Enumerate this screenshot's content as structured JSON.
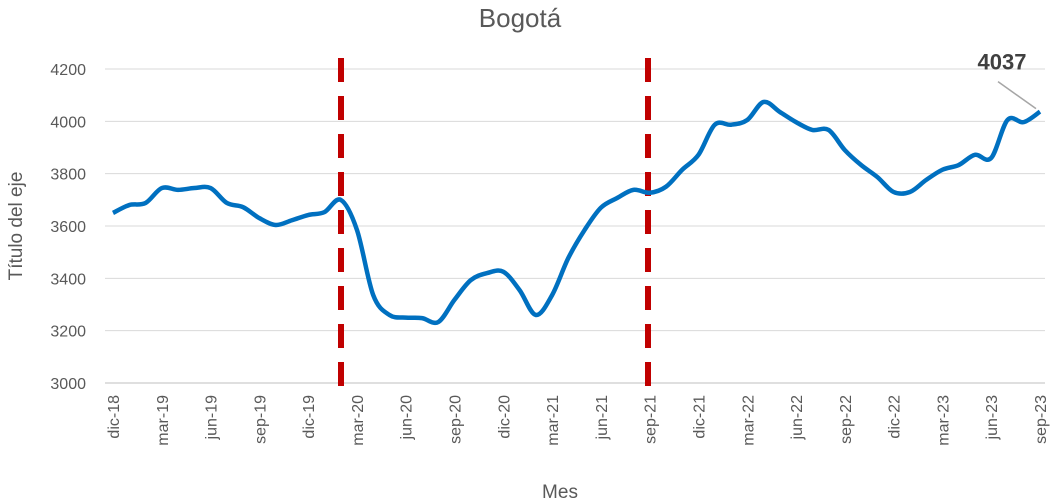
{
  "chart_data": {
    "type": "line",
    "title": "Bogotá",
    "x_label": "Mes",
    "y_label": "Título del eje",
    "categories": [
      "dic-18",
      null,
      null,
      "mar-19",
      null,
      null,
      "jun-19",
      null,
      null,
      "sep-19",
      null,
      null,
      "dic-19",
      null,
      null,
      "mar-20",
      null,
      null,
      "jun-20",
      null,
      null,
      "sep-20",
      null,
      null,
      "dic-20",
      null,
      null,
      "mar-21",
      null,
      null,
      "jun-21",
      null,
      null,
      "sep-21",
      null,
      null,
      "dic-21",
      null,
      null,
      "mar-22",
      null,
      null,
      "jun-22",
      null,
      null,
      "sep-22",
      null,
      null,
      "dic-22",
      null,
      null,
      "mar-23",
      null,
      null,
      "jun-23",
      null,
      null,
      "sep-23"
    ],
    "series": [
      {
        "name": "Bogotá",
        "color": "#0070c0",
        "values": [
          3650,
          3680,
          3688,
          3745,
          3738,
          3745,
          3745,
          3688,
          3672,
          3630,
          3604,
          3622,
          3642,
          3653,
          3700,
          3585,
          3336,
          3260,
          3250,
          3248,
          3233,
          3318,
          3393,
          3420,
          3425,
          3355,
          3260,
          3336,
          3478,
          3585,
          3670,
          3707,
          3738,
          3727,
          3750,
          3815,
          3872,
          3987,
          3987,
          4005,
          4074,
          4036,
          3997,
          3967,
          3967,
          3890,
          3833,
          3787,
          3730,
          3730,
          3776,
          3815,
          3833,
          3872,
          3860,
          4005,
          3997,
          4037
        ]
      }
    ],
    "ylim": [
      3000,
      4200
    ],
    "yticks": [
      3000,
      3200,
      3400,
      3600,
      3800,
      4000,
      4200
    ],
    "grid": true
  }
}
